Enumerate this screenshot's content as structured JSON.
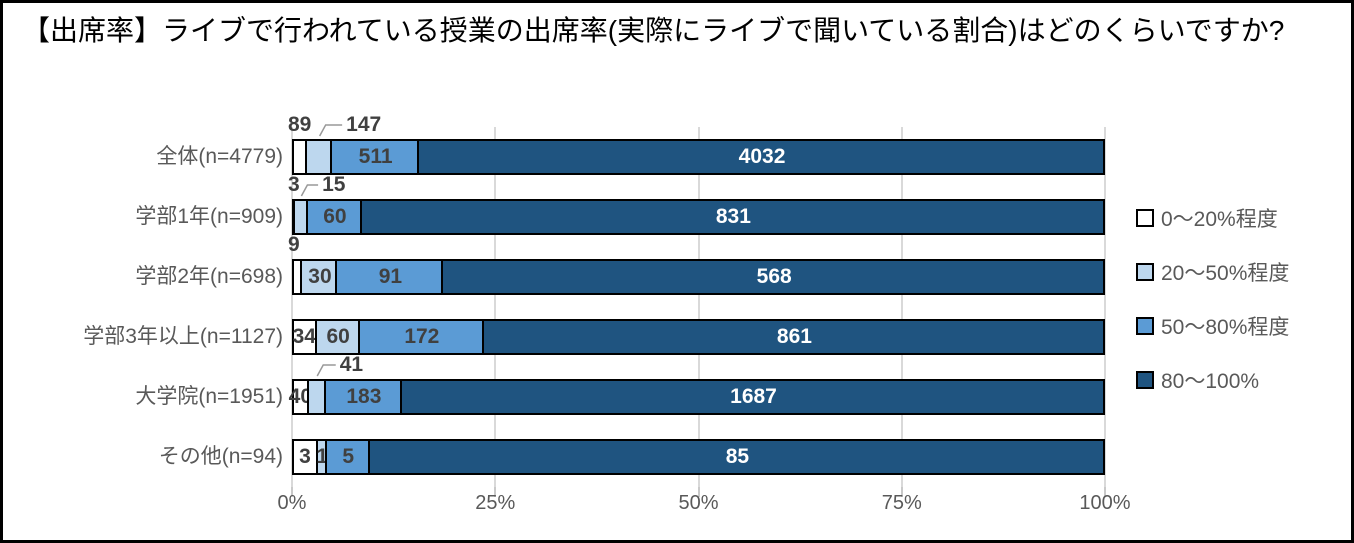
{
  "chart_data": {
    "type": "bar",
    "orientation": "horizontal",
    "stacked": true,
    "normalized_to_100pct": true,
    "title": "【出席率】ライブで行われている授業の出席率(実際にライブで聞いている割合)はどのくらいですか?",
    "categories": [
      "全体(n=4779)",
      "学部1年(n=909)",
      "学部2年(n=698)",
      "学部3年以上(n=1127)",
      "大学院(n=1951)",
      "その他(n=94)"
    ],
    "totals": [
      4779,
      909,
      698,
      1127,
      1951,
      94
    ],
    "series": [
      {
        "name": "0〜20%程度",
        "color": "#ffffff",
        "label_color": "#404040",
        "values": [
          89,
          3,
          9,
          34,
          40,
          3
        ]
      },
      {
        "name": "20〜50%程度",
        "color": "#bdd7ee",
        "label_color": "#404040",
        "values": [
          147,
          15,
          30,
          60,
          41,
          1
        ]
      },
      {
        "name": "50〜80%程度",
        "color": "#5b9bd5",
        "label_color": "#404040",
        "values": [
          511,
          60,
          91,
          172,
          183,
          5
        ]
      },
      {
        "name": "80〜100%",
        "color": "#1f5480",
        "label_color": "#ffffff",
        "values": [
          4032,
          831,
          568,
          861,
          1687,
          85
        ]
      }
    ],
    "x_ticks": [
      "0%",
      "25%",
      "50%",
      "75%",
      "100%"
    ],
    "xlim": [
      0,
      100
    ],
    "grid": true,
    "legend_position": "right",
    "label_placements": [
      [
        "above",
        "above-leader",
        "in",
        "in"
      ],
      [
        "above",
        "above-leader",
        "in",
        "in"
      ],
      [
        "above",
        "in",
        "in",
        "in"
      ],
      [
        "in",
        "in",
        "in",
        "in"
      ],
      [
        "in",
        "above-leader",
        "in",
        "in"
      ],
      [
        "in",
        "in",
        "in",
        "in"
      ]
    ],
    "bar_border_color": "#000000",
    "gridline_color": "#d9d9d9",
    "leader_line_color": "#999999",
    "category_label_color": "#595959",
    "axis_label_color": "#595959",
    "frame_border_color": "#000000"
  }
}
